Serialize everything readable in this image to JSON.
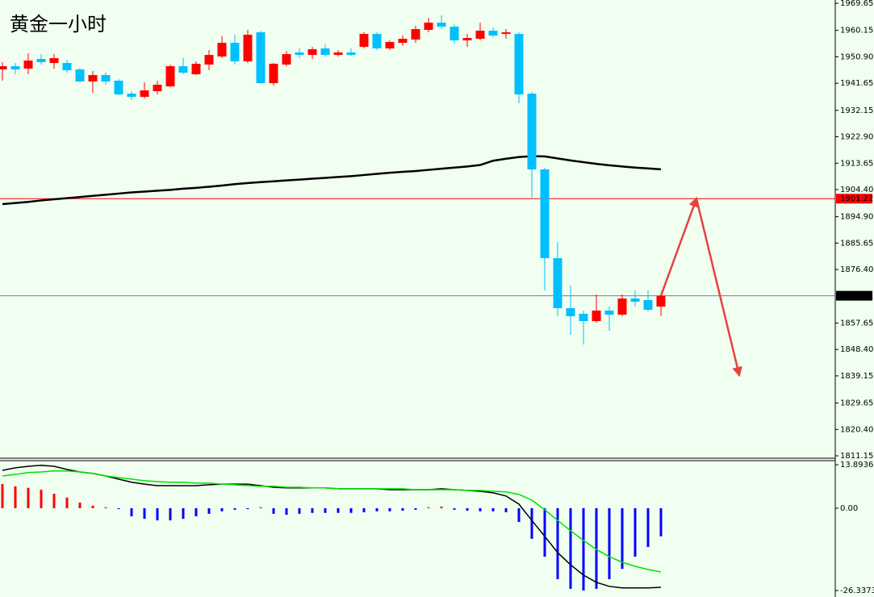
{
  "chart_data": [
    {
      "type": "candlestick",
      "title": "黄金一小时",
      "title_color": "#ff3333",
      "up_color": "#ff0000",
      "down_color": "#00bfff",
      "open": [
        1946.48,
        1947.61,
        1946.77,
        1950.16,
        1948.74,
        1948.74,
        1946.48,
        1942.25,
        1944.51,
        1942.53,
        1938.01,
        1936.88,
        1938.86,
        1940.55,
        1947.61,
        1944.79,
        1948.18,
        1951.0,
        1955.81,
        1949.31,
        1959.48,
        1941.68,
        1948.18,
        1952.42,
        1951.57,
        1953.83,
        1951.57,
        1952.42,
        1954.39,
        1958.91,
        1953.83,
        1955.81,
        1956.94,
        1960.33,
        1962.87,
        1961.46,
        1956.65,
        1957.22,
        1960.04,
        1958.91,
        1958.91,
        1938.01,
        1911.45,
        1880.38,
        1862.86,
        1860.89,
        1858.34,
        1862.02,
        1860.6,
        1866.25,
        1865.69,
        1863.43
      ],
      "high": [
        1949.03,
        1948.74,
        1952.13,
        1951.85,
        1951.85,
        1949.87,
        1947.05,
        1945.92,
        1945.35,
        1943.09,
        1938.86,
        1941.96,
        1942.53,
        1948.18,
        1950.44,
        1949.31,
        1953.26,
        1958.07,
        1958.63,
        1960.33,
        1960.04,
        1948.74,
        1952.98,
        1953.83,
        1954.39,
        1955.24,
        1953.26,
        1953.83,
        1959.48,
        1959.48,
        1956.65,
        1958.35,
        1961.74,
        1964.56,
        1965.41,
        1962.3,
        1958.91,
        1962.87,
        1961.17,
        1960.61,
        1959.48,
        1938.57,
        1912.02,
        1886.03,
        1870.77,
        1862.02,
        1867.67,
        1863.43,
        1867.67,
        1869.08,
        1869.08,
        1867.95
      ],
      "low": [
        1942.53,
        1944.79,
        1944.79,
        1948.18,
        1946.77,
        1945.35,
        1941.96,
        1938.29,
        1941.12,
        1937.44,
        1935.75,
        1936.31,
        1937.73,
        1940.27,
        1944.79,
        1944.51,
        1946.2,
        1950.44,
        1948.18,
        1948.74,
        1941.4,
        1940.83,
        1947.61,
        1950.44,
        1950.16,
        1951.0,
        1951.0,
        1951.29,
        1953.83,
        1953.26,
        1953.26,
        1954.68,
        1955.81,
        1959.48,
        1960.61,
        1955.52,
        1954.39,
        1956.65,
        1957.78,
        1957.22,
        1934.62,
        1901.57,
        1869.08,
        1860.04,
        1853.54,
        1850.15,
        1857.78,
        1854.95,
        1860.04,
        1863.43,
        1861.73,
        1860.04
      ],
      "close": [
        1947.61,
        1946.48,
        1949.59,
        1949.03,
        1950.44,
        1946.2,
        1942.25,
        1944.51,
        1942.25,
        1937.73,
        1936.88,
        1939.14,
        1941.12,
        1947.61,
        1945.35,
        1948.46,
        1951.57,
        1955.81,
        1949.31,
        1958.63,
        1941.68,
        1948.46,
        1951.85,
        1951.57,
        1953.55,
        1951.57,
        1952.42,
        1951.57,
        1958.91,
        1953.83,
        1956.09,
        1957.22,
        1960.61,
        1962.87,
        1961.46,
        1956.65,
        1957.5,
        1960.04,
        1958.35,
        1959.48,
        1937.73,
        1911.45,
        1880.38,
        1862.86,
        1860.04,
        1858.34,
        1862.02,
        1860.6,
        1866.25,
        1865.12,
        1862.3,
        1867.21
      ],
      "ma": {
        "color": "#000000",
        "values": [
          1899.3,
          1899.7,
          1900.1,
          1900.6,
          1901.0,
          1901.4,
          1901.8,
          1902.2,
          1902.6,
          1903.0,
          1903.4,
          1903.7,
          1904.0,
          1904.3,
          1904.7,
          1905.0,
          1905.4,
          1905.8,
          1906.3,
          1906.7,
          1907.0,
          1907.3,
          1907.6,
          1907.9,
          1908.2,
          1908.5,
          1908.8,
          1909.1,
          1909.5,
          1909.9,
          1910.3,
          1910.6,
          1910.9,
          1911.3,
          1911.7,
          1912.1,
          1912.5,
          1913.0,
          1914.5,
          1915.2,
          1915.8,
          1916.1,
          1916.0,
          1915.3,
          1914.6,
          1914.0,
          1913.4,
          1912.9,
          1912.5,
          1912.1,
          1911.8,
          1911.5
        ]
      },
      "price_lines": [
        {
          "value": 1901.22,
          "color": "#ff0000"
        },
        {
          "value": 1867.21,
          "color": "#6b7fa8"
        }
      ],
      "forecast": {
        "color": "#e84040",
        "values": [
          1867.21,
          1901.22,
          1839.42
        ]
      },
      "ylim": [
        1810.3,
        1970.8
      ],
      "yticks": [
        1969.65,
        1960.15,
        {
          "value": 1950.9,
          "label": "1950.90"
        },
        1941.65,
        1932.15,
        {
          "value": 1922.9,
          "label": "1922.90"
        },
        1913.65,
        {
          "value": 1904.4,
          "label": "1904.40"
        },
        {
          "value": 1894.9,
          "label": "1894.90"
        },
        1885.65,
        {
          "value": 1876.4,
          "label": "1876.40"
        },
        1857.65,
        {
          "value": 1848.4,
          "label": "1848.40"
        },
        1839.15,
        1829.65,
        {
          "value": 1820.4,
          "label": "1820.40"
        },
        1811.15
      ]
    },
    {
      "type": "macd",
      "positive_color": "#ff0000",
      "negative_color": "#0000ff",
      "histogram": [
        7.7,
        7.0,
        6.5,
        5.9,
        4.6,
        3.4,
        1.8,
        0.8,
        0.3,
        -0.3,
        -2.6,
        -3.4,
        -3.9,
        -3.9,
        -3.4,
        -2.6,
        -1.8,
        -1.0,
        -0.5,
        -0.3,
        0.3,
        -1.8,
        -2.1,
        -1.8,
        -1.5,
        -1.5,
        -1.5,
        -1.5,
        -1.3,
        -1.0,
        -1.0,
        -0.8,
        -0.5,
        0.3,
        0.5,
        -0.5,
        -0.8,
        -1.0,
        -1.0,
        -1.3,
        -4.4,
        -9.8,
        -15.5,
        -22.7,
        -25.8,
        -26.3,
        -25.8,
        -22.7,
        -19.4,
        -15.5,
        -12.4,
        -9.0
      ],
      "series": [
        {
          "color": "#000000",
          "values": [
            12.1,
            12.9,
            13.4,
            13.7,
            13.4,
            12.4,
            11.6,
            11.1,
            10.3,
            9.3,
            8.3,
            7.7,
            7.2,
            7.2,
            7.2,
            7.2,
            7.5,
            7.7,
            7.7,
            7.7,
            7.2,
            6.7,
            6.5,
            6.5,
            6.5,
            6.5,
            6.2,
            6.2,
            6.2,
            6.2,
            5.9,
            5.9,
            5.9,
            5.9,
            6.2,
            5.9,
            5.7,
            5.4,
            4.9,
            3.9,
            1.3,
            -3.9,
            -9.0,
            -14.2,
            -18.1,
            -21.4,
            -23.7,
            -25.0,
            -25.5,
            -25.5,
            -25.5,
            -25.3
          ]
        },
        {
          "color": "#00e000",
          "values": [
            10.3,
            10.8,
            11.4,
            11.6,
            11.9,
            11.9,
            11.6,
            11.1,
            10.3,
            9.8,
            9.3,
            8.8,
            8.5,
            8.3,
            8.3,
            8.0,
            8.0,
            7.7,
            7.5,
            7.2,
            7.0,
            7.0,
            6.7,
            6.7,
            6.5,
            6.5,
            6.2,
            6.2,
            6.2,
            6.2,
            6.2,
            6.2,
            5.9,
            5.9,
            5.9,
            5.9,
            5.7,
            5.7,
            5.4,
            5.2,
            4.4,
            2.6,
            -0.5,
            -3.9,
            -7.2,
            -10.3,
            -13.2,
            -15.5,
            -17.3,
            -18.6,
            -19.6,
            -20.4
          ]
        }
      ],
      "ylim": [
        -28.4,
        15.2
      ],
      "yticks": [
        13.8936,
        {
          "value": 0,
          "label": "0.00"
        },
        -26.3373
      ]
    }
  ]
}
